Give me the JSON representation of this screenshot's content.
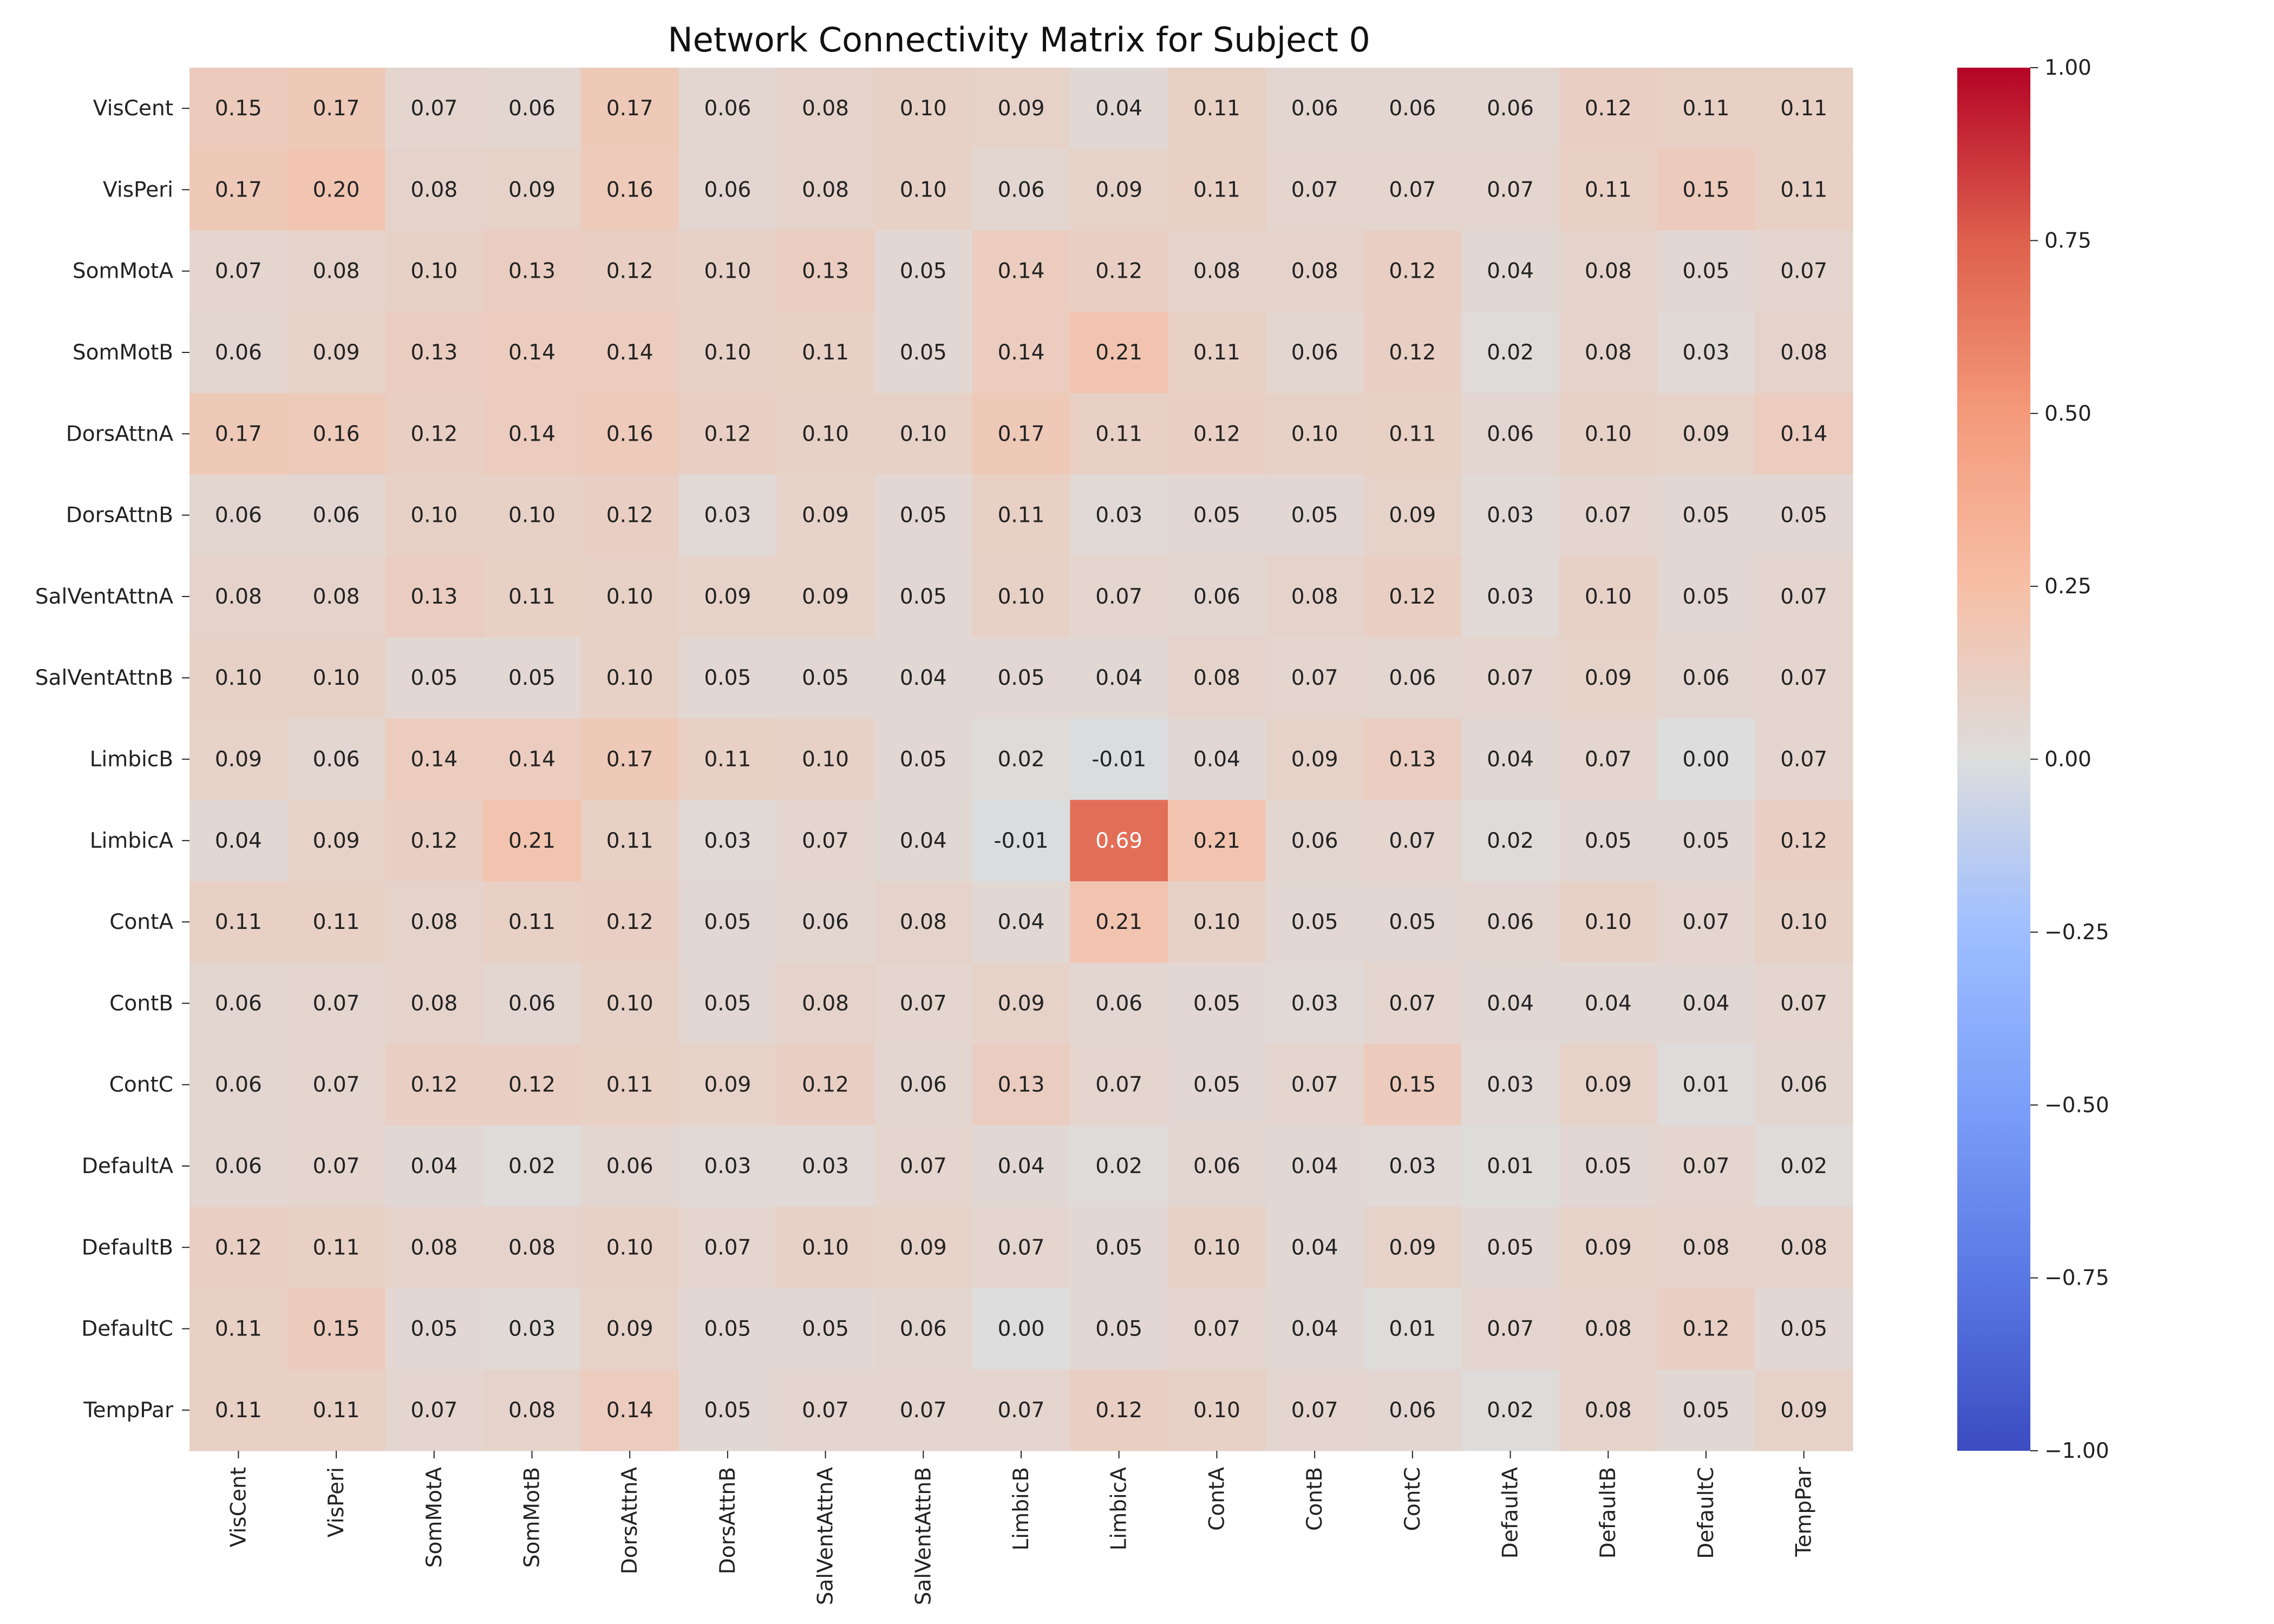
{
  "chart_data": {
    "type": "heatmap",
    "title": "Network Connectivity Matrix for Subject 0",
    "xlabel": "",
    "ylabel": "",
    "row_labels": [
      "VisCent",
      "VisPeri",
      "SomMotA",
      "SomMotB",
      "DorsAttnA",
      "DorsAttnB",
      "SalVentAttnA",
      "SalVentAttnB",
      "LimbicB",
      "LimbicA",
      "ContA",
      "ContB",
      "ContC",
      "DefaultA",
      "DefaultB",
      "DefaultC",
      "TempPar"
    ],
    "col_labels": [
      "VisCent",
      "VisPeri",
      "SomMotA",
      "SomMotB",
      "DorsAttnA",
      "DorsAttnB",
      "SalVentAttnA",
      "SalVentAttnB",
      "LimbicB",
      "LimbicA",
      "ContA",
      "ContB",
      "ContC",
      "DefaultA",
      "DefaultB",
      "DefaultC",
      "TempPar"
    ],
    "values": [
      [
        0.15,
        0.17,
        0.07,
        0.06,
        0.17,
        0.06,
        0.08,
        0.1,
        0.09,
        0.04,
        0.11,
        0.06,
        0.06,
        0.06,
        0.12,
        0.11,
        0.11
      ],
      [
        0.17,
        0.2,
        0.08,
        0.09,
        0.16,
        0.06,
        0.08,
        0.1,
        0.06,
        0.09,
        0.11,
        0.07,
        0.07,
        0.07,
        0.11,
        0.15,
        0.11
      ],
      [
        0.07,
        0.08,
        0.1,
        0.13,
        0.12,
        0.1,
        0.13,
        0.05,
        0.14,
        0.12,
        0.08,
        0.08,
        0.12,
        0.04,
        0.08,
        0.05,
        0.07
      ],
      [
        0.06,
        0.09,
        0.13,
        0.14,
        0.14,
        0.1,
        0.11,
        0.05,
        0.14,
        0.21,
        0.11,
        0.06,
        0.12,
        0.02,
        0.08,
        0.03,
        0.08
      ],
      [
        0.17,
        0.16,
        0.12,
        0.14,
        0.16,
        0.12,
        0.1,
        0.1,
        0.17,
        0.11,
        0.12,
        0.1,
        0.11,
        0.06,
        0.1,
        0.09,
        0.14
      ],
      [
        0.06,
        0.06,
        0.1,
        0.1,
        0.12,
        0.03,
        0.09,
        0.05,
        0.11,
        0.03,
        0.05,
        0.05,
        0.09,
        0.03,
        0.07,
        0.05,
        0.05
      ],
      [
        0.08,
        0.08,
        0.13,
        0.11,
        0.1,
        0.09,
        0.09,
        0.05,
        0.1,
        0.07,
        0.06,
        0.08,
        0.12,
        0.03,
        0.1,
        0.05,
        0.07
      ],
      [
        0.1,
        0.1,
        0.05,
        0.05,
        0.1,
        0.05,
        0.05,
        0.04,
        0.05,
        0.04,
        0.08,
        0.07,
        0.06,
        0.07,
        0.09,
        0.06,
        0.07
      ],
      [
        0.09,
        0.06,
        0.14,
        0.14,
        0.17,
        0.11,
        0.1,
        0.05,
        0.02,
        -0.01,
        0.04,
        0.09,
        0.13,
        0.04,
        0.07,
        0.0,
        0.07
      ],
      [
        0.04,
        0.09,
        0.12,
        0.21,
        0.11,
        0.03,
        0.07,
        0.04,
        -0.01,
        0.69,
        0.21,
        0.06,
        0.07,
        0.02,
        0.05,
        0.05,
        0.12
      ],
      [
        0.11,
        0.11,
        0.08,
        0.11,
        0.12,
        0.05,
        0.06,
        0.08,
        0.04,
        0.21,
        0.1,
        0.05,
        0.05,
        0.06,
        0.1,
        0.07,
        0.1
      ],
      [
        0.06,
        0.07,
        0.08,
        0.06,
        0.1,
        0.05,
        0.08,
        0.07,
        0.09,
        0.06,
        0.05,
        0.03,
        0.07,
        0.04,
        0.04,
        0.04,
        0.07
      ],
      [
        0.06,
        0.07,
        0.12,
        0.12,
        0.11,
        0.09,
        0.12,
        0.06,
        0.13,
        0.07,
        0.05,
        0.07,
        0.15,
        0.03,
        0.09,
        0.01,
        0.06
      ],
      [
        0.06,
        0.07,
        0.04,
        0.02,
        0.06,
        0.03,
        0.03,
        0.07,
        0.04,
        0.02,
        0.06,
        0.04,
        0.03,
        0.01,
        0.05,
        0.07,
        0.02
      ],
      [
        0.12,
        0.11,
        0.08,
        0.08,
        0.1,
        0.07,
        0.1,
        0.09,
        0.07,
        0.05,
        0.1,
        0.04,
        0.09,
        0.05,
        0.09,
        0.08,
        0.08
      ],
      [
        0.11,
        0.15,
        0.05,
        0.03,
        0.09,
        0.05,
        0.05,
        0.06,
        0.0,
        0.05,
        0.07,
        0.04,
        0.01,
        0.07,
        0.08,
        0.12,
        0.05
      ],
      [
        0.11,
        0.11,
        0.07,
        0.08,
        0.14,
        0.05,
        0.07,
        0.07,
        0.07,
        0.12,
        0.1,
        0.07,
        0.06,
        0.02,
        0.08,
        0.05,
        0.09
      ]
    ],
    "colorbar": {
      "range": [
        -1.0,
        1.0
      ],
      "colormap": "coolwarm",
      "ticks": [
        -1.0,
        -0.75,
        -0.5,
        -0.25,
        0.0,
        0.25,
        0.5,
        0.75,
        1.0
      ],
      "tick_labels": [
        "−1.00",
        "−0.75",
        "−0.50",
        "−0.25",
        "0.00",
        "0.25",
        "0.50",
        "0.75",
        "1.00"
      ]
    },
    "annotation_format": "0.00"
  }
}
